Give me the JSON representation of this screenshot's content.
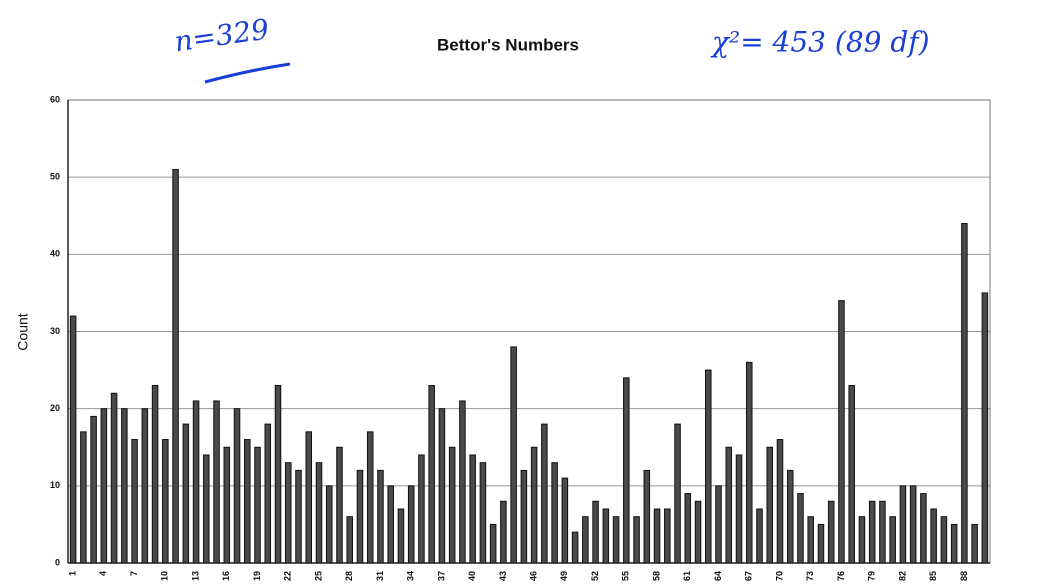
{
  "chart_data": {
    "type": "bar",
    "title": "Bettor's Numbers",
    "y_label": "Count",
    "annotations": [
      "n=329",
      "χ²= 453 (89 df)"
    ],
    "categories": [
      "1",
      null,
      null,
      "4",
      null,
      null,
      "7",
      null,
      null,
      "10",
      null,
      null,
      "13",
      null,
      null,
      "16",
      null,
      null,
      "19",
      null,
      null,
      "22",
      null,
      null,
      "25",
      null,
      null,
      "28",
      null,
      null,
      "31",
      null,
      null,
      "34",
      null,
      null,
      "37",
      null,
      null,
      "40",
      null,
      null,
      "43",
      null,
      null,
      "46",
      null,
      null,
      "49",
      null,
      null,
      "52",
      null,
      null,
      "55",
      null,
      null,
      "58",
      null,
      null,
      "61",
      null,
      null,
      "64",
      null,
      null,
      "67",
      null,
      null,
      "70",
      null,
      null,
      "73",
      null,
      null,
      "76",
      null,
      null,
      "79",
      null,
      null,
      "82",
      null,
      null,
      "85",
      null,
      null,
      "88",
      null,
      null
    ],
    "values": [
      32,
      17,
      19,
      20,
      22,
      20,
      16,
      20,
      23,
      16,
      51,
      18,
      21,
      14,
      21,
      15,
      20,
      16,
      15,
      18,
      23,
      13,
      12,
      17,
      13,
      10,
      15,
      6,
      12,
      17,
      12,
      10,
      7,
      10,
      14,
      23,
      20,
      15,
      21,
      14,
      13,
      5,
      8,
      28,
      12,
      15,
      18,
      13,
      11,
      4,
      6,
      8,
      7,
      6,
      24,
      6,
      12,
      7,
      7,
      18,
      9,
      8,
      25,
      10,
      15,
      14,
      26,
      7,
      15,
      16,
      12,
      9,
      6,
      5,
      8,
      34,
      23,
      6,
      8,
      8,
      6,
      10,
      10,
      9,
      7,
      6,
      5,
      44,
      5,
      35
    ],
    "color": "#4a4a4a",
    "ylim": [
      0,
      60
    ],
    "yticks": [
      0,
      10,
      20,
      30,
      40,
      50,
      60
    ],
    "grid": true
  }
}
